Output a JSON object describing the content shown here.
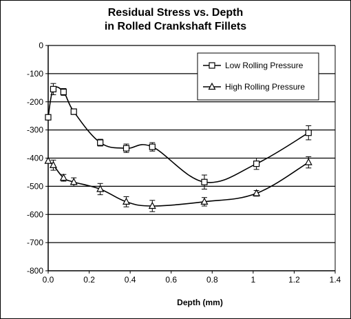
{
  "chart_data": {
    "type": "line",
    "title_line1": "Residual Stress vs. Depth",
    "title_line2": "in Rolled Crankshaft Fillets",
    "xlabel": "Depth (mm)",
    "ylabel": "",
    "xlim": [
      0,
      1.4
    ],
    "ylim": [
      -800,
      0
    ],
    "x_ticks": [
      0.0,
      0.2,
      0.4,
      0.6,
      0.8,
      1.0,
      1.2,
      1.4
    ],
    "x_tick_labels": [
      "0.0",
      "0.2",
      "0.4",
      "0.6",
      "0.8",
      "1",
      "1.2",
      "1.4"
    ],
    "y_ticks": [
      0,
      -100,
      -200,
      -300,
      -400,
      -500,
      -600,
      -700,
      -800
    ],
    "y_tick_labels": [
      "0",
      "-100",
      "-200",
      "-300",
      "-400",
      "-500",
      "-600",
      "-700",
      "-800"
    ],
    "grid": "horizontal",
    "legend_position": "top-right",
    "series": [
      {
        "name": "Low Rolling Pressure",
        "marker": "square",
        "x": [
          0.0,
          0.025,
          0.075,
          0.125,
          0.254,
          0.381,
          0.508,
          0.762,
          1.016,
          1.27
        ],
        "y": [
          -255,
          -155,
          -165,
          -235,
          -345,
          -365,
          -360,
          -485,
          -420,
          -310
        ],
        "error": [
          0,
          20,
          12,
          10,
          12,
          15,
          15,
          25,
          20,
          25
        ]
      },
      {
        "name": "High Rolling Pressure",
        "marker": "triangle",
        "x": [
          0.0,
          0.025,
          0.075,
          0.125,
          0.254,
          0.381,
          0.508,
          0.762,
          1.016,
          1.27
        ],
        "y": [
          -410,
          -425,
          -470,
          -485,
          -510,
          -555,
          -570,
          -555,
          -525,
          -415
        ],
        "error": [
          0,
          18,
          12,
          15,
          20,
          18,
          20,
          15,
          10,
          20
        ]
      }
    ]
  }
}
